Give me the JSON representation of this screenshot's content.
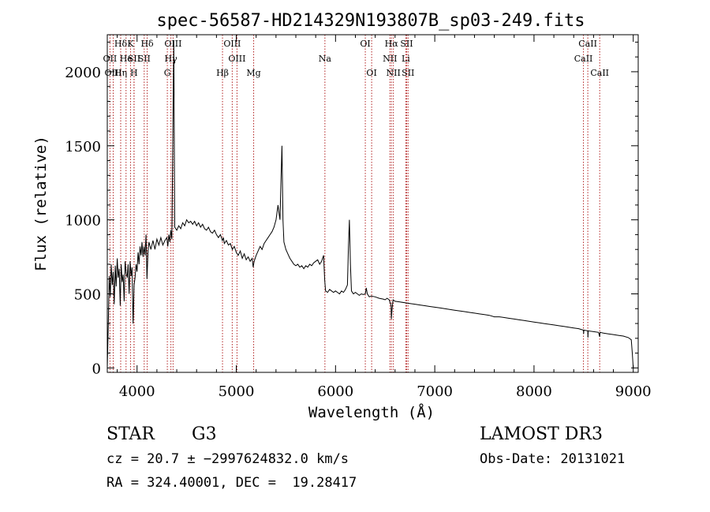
{
  "chart_data": {
    "type": "line",
    "title": "spec-56587-HD214329N193807B_sp03-249.fits",
    "xlabel": "Wavelength (Å)",
    "ylabel": "Flux (relative)",
    "xlim": [
      3700,
      9050
    ],
    "ylim": [
      -30,
      2250
    ],
    "x_ticks": [
      4000,
      5000,
      6000,
      7000,
      8000,
      9000
    ],
    "y_ticks": [
      0,
      500,
      1000,
      1500,
      2000
    ],
    "line_color": "#000000",
    "marker_color": "#b22222",
    "series": [
      {
        "name": "flux",
        "points": [
          [
            3700,
            0
          ],
          [
            3710,
            300
          ],
          [
            3720,
            620
          ],
          [
            3730,
            480
          ],
          [
            3740,
            700
          ],
          [
            3750,
            560
          ],
          [
            3760,
            650
          ],
          [
            3770,
            430
          ],
          [
            3780,
            690
          ],
          [
            3790,
            550
          ],
          [
            3800,
            740
          ],
          [
            3810,
            610
          ],
          [
            3820,
            670
          ],
          [
            3830,
            420
          ],
          [
            3840,
            700
          ],
          [
            3850,
            580
          ],
          [
            3860,
            630
          ],
          [
            3870,
            450
          ],
          [
            3880,
            720
          ],
          [
            3890,
            640
          ],
          [
            3900,
            610
          ],
          [
            3910,
            700
          ],
          [
            3920,
            500
          ],
          [
            3930,
            720
          ],
          [
            3940,
            620
          ],
          [
            3950,
            680
          ],
          [
            3960,
            300
          ],
          [
            3970,
            560
          ],
          [
            3980,
            610
          ],
          [
            3990,
            700
          ],
          [
            4000,
            650
          ],
          [
            4010,
            780
          ],
          [
            4020,
            700
          ],
          [
            4030,
            820
          ],
          [
            4040,
            760
          ],
          [
            4050,
            850
          ],
          [
            4060,
            750
          ],
          [
            4070,
            820
          ],
          [
            4080,
            760
          ],
          [
            4090,
            900
          ],
          [
            4100,
            600
          ],
          [
            4110,
            780
          ],
          [
            4120,
            850
          ],
          [
            4140,
            800
          ],
          [
            4160,
            860
          ],
          [
            4180,
            800
          ],
          [
            4200,
            870
          ],
          [
            4220,
            830
          ],
          [
            4240,
            880
          ],
          [
            4260,
            830
          ],
          [
            4280,
            860
          ],
          [
            4300,
            880
          ],
          [
            4310,
            820
          ],
          [
            4320,
            900
          ],
          [
            4330,
            850
          ],
          [
            4340,
            930
          ],
          [
            4350,
            870
          ],
          [
            4360,
            1500
          ],
          [
            4370,
            2210
          ],
          [
            4380,
            950
          ],
          [
            4400,
            930
          ],
          [
            4420,
            960
          ],
          [
            4440,
            940
          ],
          [
            4460,
            980
          ],
          [
            4480,
            960
          ],
          [
            4500,
            1000
          ],
          [
            4520,
            980
          ],
          [
            4540,
            990
          ],
          [
            4560,
            970
          ],
          [
            4580,
            990
          ],
          [
            4600,
            960
          ],
          [
            4620,
            980
          ],
          [
            4640,
            950
          ],
          [
            4660,
            970
          ],
          [
            4680,
            940
          ],
          [
            4700,
            930
          ],
          [
            4720,
            950
          ],
          [
            4740,
            920
          ],
          [
            4760,
            910
          ],
          [
            4780,
            930
          ],
          [
            4800,
            900
          ],
          [
            4820,
            880
          ],
          [
            4840,
            900
          ],
          [
            4860,
            860
          ],
          [
            4870,
            880
          ],
          [
            4880,
            840
          ],
          [
            4900,
            860
          ],
          [
            4920,
            830
          ],
          [
            4940,
            840
          ],
          [
            4960,
            800
          ],
          [
            4980,
            820
          ],
          [
            5000,
            780
          ],
          [
            5020,
            760
          ],
          [
            5040,
            790
          ],
          [
            5060,
            740
          ],
          [
            5080,
            770
          ],
          [
            5100,
            730
          ],
          [
            5120,
            750
          ],
          [
            5140,
            720
          ],
          [
            5160,
            740
          ],
          [
            5170,
            680
          ],
          [
            5180,
            720
          ],
          [
            5200,
            760
          ],
          [
            5220,
            790
          ],
          [
            5240,
            820
          ],
          [
            5260,
            800
          ],
          [
            5280,
            840
          ],
          [
            5300,
            860
          ],
          [
            5320,
            880
          ],
          [
            5340,
            900
          ],
          [
            5360,
            920
          ],
          [
            5380,
            950
          ],
          [
            5400,
            1000
          ],
          [
            5420,
            1100
          ],
          [
            5430,
            1050
          ],
          [
            5440,
            1000
          ],
          [
            5450,
            1250
          ],
          [
            5460,
            1500
          ],
          [
            5470,
            1000
          ],
          [
            5480,
            850
          ],
          [
            5500,
            800
          ],
          [
            5520,
            770
          ],
          [
            5540,
            740
          ],
          [
            5560,
            720
          ],
          [
            5580,
            700
          ],
          [
            5600,
            690
          ],
          [
            5620,
            700
          ],
          [
            5640,
            680
          ],
          [
            5660,
            690
          ],
          [
            5680,
            670
          ],
          [
            5700,
            690
          ],
          [
            5720,
            680
          ],
          [
            5740,
            700
          ],
          [
            5760,
            690
          ],
          [
            5780,
            710
          ],
          [
            5800,
            720
          ],
          [
            5820,
            730
          ],
          [
            5840,
            700
          ],
          [
            5860,
            720
          ],
          [
            5880,
            760
          ],
          [
            5890,
            600
          ],
          [
            5900,
            520
          ],
          [
            5920,
            510
          ],
          [
            5940,
            530
          ],
          [
            5960,
            520
          ],
          [
            5980,
            510
          ],
          [
            6000,
            520
          ],
          [
            6020,
            510
          ],
          [
            6040,
            500
          ],
          [
            6060,
            520
          ],
          [
            6080,
            510
          ],
          [
            6100,
            530
          ],
          [
            6120,
            560
          ],
          [
            6130,
            820
          ],
          [
            6140,
            1000
          ],
          [
            6150,
            700
          ],
          [
            6160,
            520
          ],
          [
            6180,
            500
          ],
          [
            6200,
            510
          ],
          [
            6220,
            500
          ],
          [
            6240,
            490
          ],
          [
            6260,
            500
          ],
          [
            6280,
            495
          ],
          [
            6300,
            500
          ],
          [
            6310,
            540
          ],
          [
            6320,
            500
          ],
          [
            6340,
            480
          ],
          [
            6360,
            485
          ],
          [
            6400,
            480
          ],
          [
            6440,
            470
          ],
          [
            6480,
            465
          ],
          [
            6500,
            460
          ],
          [
            6520,
            470
          ],
          [
            6540,
            460
          ],
          [
            6560,
            420
          ],
          [
            6563,
            330
          ],
          [
            6570,
            400
          ],
          [
            6580,
            460
          ],
          [
            6600,
            450
          ],
          [
            6650,
            445
          ],
          [
            6700,
            440
          ],
          [
            6750,
            435
          ],
          [
            6800,
            430
          ],
          [
            6850,
            425
          ],
          [
            6900,
            420
          ],
          [
            6950,
            415
          ],
          [
            7000,
            410
          ],
          [
            7050,
            405
          ],
          [
            7100,
            400
          ],
          [
            7150,
            395
          ],
          [
            7200,
            390
          ],
          [
            7250,
            385
          ],
          [
            7300,
            380
          ],
          [
            7350,
            375
          ],
          [
            7400,
            370
          ],
          [
            7450,
            365
          ],
          [
            7500,
            360
          ],
          [
            7550,
            355
          ],
          [
            7600,
            345
          ],
          [
            7650,
            345
          ],
          [
            7700,
            340
          ],
          [
            7750,
            335
          ],
          [
            7800,
            330
          ],
          [
            7850,
            325
          ],
          [
            7900,
            320
          ],
          [
            7950,
            315
          ],
          [
            8000,
            310
          ],
          [
            8050,
            305
          ],
          [
            8100,
            300
          ],
          [
            8150,
            295
          ],
          [
            8200,
            290
          ],
          [
            8250,
            285
          ],
          [
            8300,
            280
          ],
          [
            8350,
            275
          ],
          [
            8400,
            270
          ],
          [
            8450,
            265
          ],
          [
            8498,
            255
          ],
          [
            8500,
            230
          ],
          [
            8502,
            255
          ],
          [
            8542,
            250
          ],
          [
            8544,
            205
          ],
          [
            8546,
            250
          ],
          [
            8600,
            245
          ],
          [
            8650,
            240
          ],
          [
            8662,
            210
          ],
          [
            8665,
            240
          ],
          [
            8700,
            235
          ],
          [
            8750,
            230
          ],
          [
            8800,
            225
          ],
          [
            8850,
            220
          ],
          [
            8900,
            215
          ],
          [
            8950,
            205
          ],
          [
            8980,
            190
          ],
          [
            8990,
            100
          ],
          [
            9000,
            0
          ]
        ]
      }
    ],
    "line_markers": [
      {
        "label": "Hδ",
        "wl": 3835,
        "row": 0
      },
      {
        "label": "OII",
        "wl": 3727,
        "row": 1
      },
      {
        "label": "OIII",
        "wl": 3760,
        "row": 2
      },
      {
        "label": "He",
        "wl": 3889,
        "row": 1
      },
      {
        "label": "Hη",
        "wl": 3835,
        "row": 2
      },
      {
        "label": "K",
        "wl": 3934,
        "row": 0
      },
      {
        "label": "SII",
        "wl": 3970,
        "row": 1
      },
      {
        "label": "H",
        "wl": 3969,
        "row": 2
      },
      {
        "label": "Hδ",
        "wl": 4102,
        "row": 0
      },
      {
        "label": "SII",
        "wl": 4072,
        "row": 1
      },
      {
        "label": "OIII",
        "wl": 4363,
        "row": 0
      },
      {
        "label": "Hγ",
        "wl": 4341,
        "row": 1
      },
      {
        "label": "G",
        "wl": 4305,
        "row": 2
      },
      {
        "label": "Hβ",
        "wl": 4861,
        "row": 2
      },
      {
        "label": "OIII",
        "wl": 4959,
        "row": 0
      },
      {
        "label": "OIII",
        "wl": 5007,
        "row": 1
      },
      {
        "label": "Mg",
        "wl": 5175,
        "row": 2
      },
      {
        "label": "Na",
        "wl": 5893,
        "row": 1
      },
      {
        "label": "OI",
        "wl": 6300,
        "row": 0
      },
      {
        "label": "OI",
        "wl": 6364,
        "row": 2
      },
      {
        "label": "Hα",
        "wl": 6563,
        "row": 0
      },
      {
        "label": "NII",
        "wl": 6548,
        "row": 1
      },
      {
        "label": "NII",
        "wl": 6583,
        "row": 2
      },
      {
        "label": "SII",
        "wl": 6717,
        "row": 0
      },
      {
        "label": "Li",
        "wl": 6708,
        "row": 1
      },
      {
        "label": "SII",
        "wl": 6731,
        "row": 2
      },
      {
        "label": "CaII",
        "wl": 8542,
        "row": 0
      },
      {
        "label": "CaII",
        "wl": 8498,
        "row": 1
      },
      {
        "label": "CaII",
        "wl": 8662,
        "row": 2
      }
    ]
  },
  "info": {
    "object_class": "STAR",
    "subclass": "G3",
    "survey": "LAMOST DR3",
    "cz_line": "cz = 20.7 ± −2997624832.0 km/s",
    "obs_date": "Obs-Date: 20131021",
    "coord_line": "RA = 324.40001, DEC =  19.28417"
  }
}
